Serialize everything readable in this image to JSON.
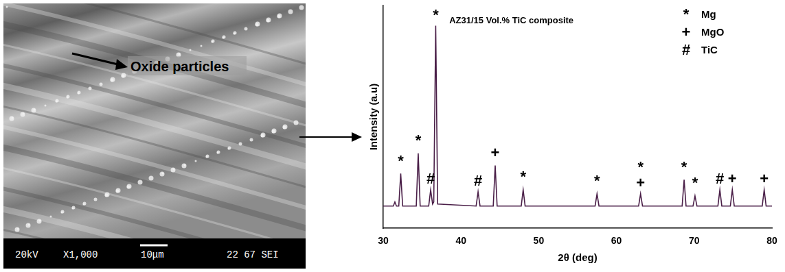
{
  "chart_data": {
    "type": "line",
    "title": "AZ31/15 Vol.% TiC composite",
    "x_label": "2θ (deg)",
    "y_label": "Intensity (a.u)",
    "x": [
      30.0,
      31.3,
      31.5,
      31.7,
      32.0,
      32.25,
      32.5,
      34.25,
      34.5,
      34.75,
      35.85,
      36.1,
      36.35,
      36.5,
      36.75,
      37.0,
      41.95,
      42.2,
      42.45,
      44.15,
      44.4,
      44.65,
      47.75,
      48.0,
      48.25,
      57.25,
      57.5,
      57.75,
      62.85,
      63.1,
      63.35,
      68.45,
      68.7,
      68.95,
      69.85,
      70.1,
      70.35,
      73.05,
      73.3,
      73.55,
      74.65,
      74.9,
      75.15,
      78.75,
      79.0,
      79.25,
      80.0
    ],
    "values": [
      11,
      11,
      13,
      11,
      11,
      27,
      11,
      11,
      37,
      11,
      11,
      19,
      12,
      13,
      100,
      12,
      11,
      18,
      11,
      11,
      31,
      11,
      11,
      19,
      11,
      11,
      17,
      11,
      11,
      17,
      11,
      11,
      24,
      11,
      11,
      16,
      11,
      11,
      19,
      11,
      11,
      19,
      11,
      11,
      19,
      11,
      11
    ],
    "color": "#4a1f48",
    "xlim": [
      30,
      80
    ],
    "xticks": [
      30,
      40,
      50,
      60,
      70,
      80
    ],
    "ylim": [
      0,
      110
    ],
    "tick_labels": "x",
    "grid": false,
    "key": [
      {
        "symbol": "*",
        "label": "Mg"
      },
      {
        "symbol": "+",
        "label": "MgO"
      },
      {
        "symbol": "#",
        "label": "TiC"
      }
    ],
    "annotations": [
      {
        "x": 32.25,
        "y": 33,
        "text": "*"
      },
      {
        "x": 34.5,
        "y": 43,
        "text": "*"
      },
      {
        "x": 36.1,
        "y": 24,
        "text": "#"
      },
      {
        "x": 36.75,
        "y": 105,
        "text": "*"
      },
      {
        "x": 42.2,
        "y": 23,
        "text": "#"
      },
      {
        "x": 44.4,
        "y": 37,
        "text": "+"
      },
      {
        "x": 48.0,
        "y": 25,
        "text": "*"
      },
      {
        "x": 57.5,
        "y": 23,
        "text": "*"
      },
      {
        "x": 63.1,
        "y": 30,
        "text": "*"
      },
      {
        "x": 63.1,
        "y": 22,
        "text": "+"
      },
      {
        "x": 68.7,
        "y": 30,
        "text": "*"
      },
      {
        "x": 70.1,
        "y": 22,
        "text": "*"
      },
      {
        "x": 73.3,
        "y": 24,
        "text": "#"
      },
      {
        "x": 74.9,
        "y": 24,
        "text": "+"
      },
      {
        "x": 79.0,
        "y": 24,
        "text": "+"
      }
    ]
  },
  "image": {
    "label": "Oxide particles",
    "footer": [
      "20kV",
      "X1,000",
      "10μm",
      "22 67 SEI"
    ]
  }
}
